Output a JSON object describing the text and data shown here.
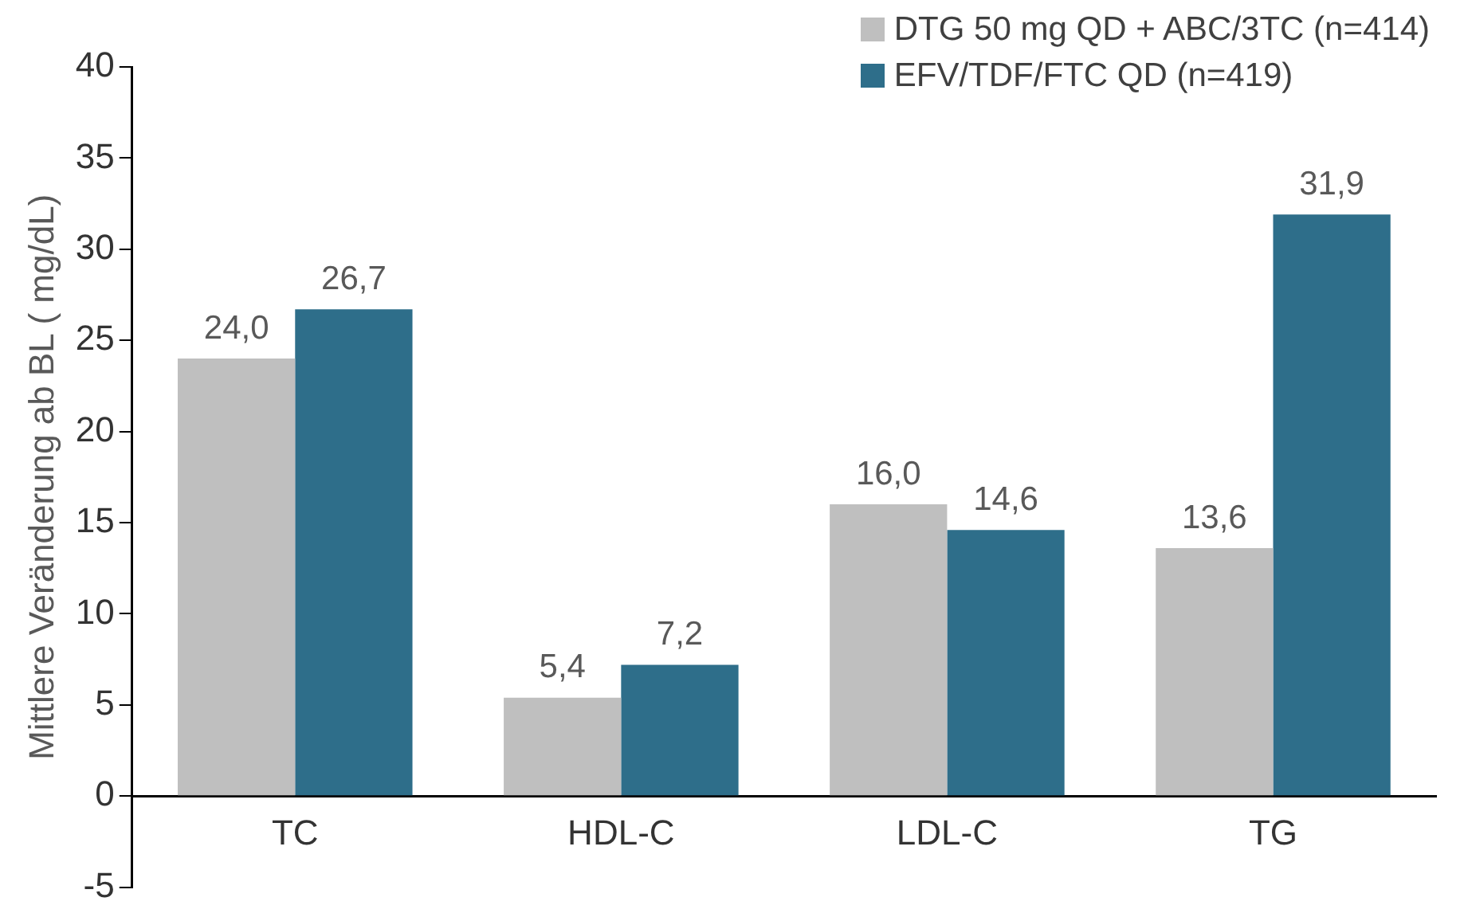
{
  "chart_data": {
    "type": "bar",
    "ylabel": "Mittlere Veränderung ab BL ( mg/dL)",
    "categories": [
      "TC",
      "HDL-C",
      "LDL-C",
      "TG"
    ],
    "series": [
      {
        "name": "DTG 50 mg QD + ABC/3TC (n=414)",
        "color": "#bfbfbf",
        "values": [
          24.0,
          5.4,
          16.0,
          13.6
        ],
        "value_labels": [
          "24,0",
          "5,4",
          "16,0",
          "13,6"
        ]
      },
      {
        "name": "EFV/TDF/FTC QD (n=419)",
        "color": "#2e6e8a",
        "values": [
          26.7,
          7.2,
          14.6,
          31.9
        ],
        "value_labels": [
          "26,7",
          "7,2",
          "14,6",
          "31,9"
        ]
      }
    ],
    "ylim": [
      -5,
      40
    ],
    "yticks": [
      -5,
      0,
      5,
      10,
      15,
      20,
      25,
      30,
      35,
      40
    ],
    "grid": false,
    "legend": "top right"
  }
}
